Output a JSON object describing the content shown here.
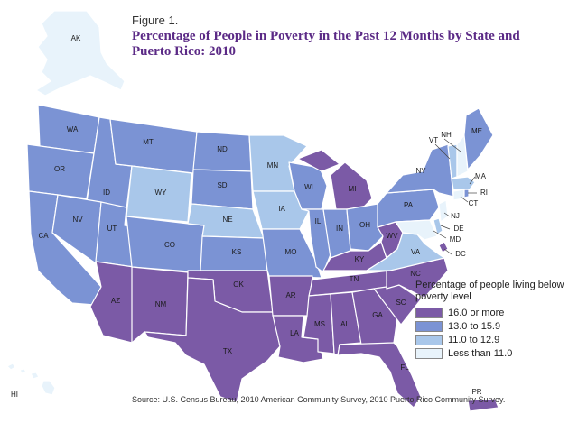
{
  "figure_label": "Figure 1.",
  "title": "Percentage of People in Poverty in the Past 12 Months by State and Puerto Rico: 2010",
  "legend": {
    "title": "Percentage of people living below poverty level",
    "items": [
      {
        "label": "16.0 or more",
        "color": "#7b5aa6"
      },
      {
        "label": "13.0 to 15.9",
        "color": "#7b93d4"
      },
      {
        "label": "11.0 to 12.9",
        "color": "#a9c7ea"
      },
      {
        "label": "Less than 11.0",
        "color": "#e8f3fb"
      }
    ]
  },
  "states": [
    {
      "abbr": "AK",
      "category": "Less than 11.0"
    },
    {
      "abbr": "WA",
      "category": "13.0 to 15.9"
    },
    {
      "abbr": "OR",
      "category": "13.0 to 15.9"
    },
    {
      "abbr": "CA",
      "category": "13.0 to 15.9"
    },
    {
      "abbr": "ID",
      "category": "13.0 to 15.9"
    },
    {
      "abbr": "NV",
      "category": "13.0 to 15.9"
    },
    {
      "abbr": "UT",
      "category": "13.0 to 15.9"
    },
    {
      "abbr": "AZ",
      "category": "16.0 or more"
    },
    {
      "abbr": "MT",
      "category": "13.0 to 15.9"
    },
    {
      "abbr": "WY",
      "category": "11.0 to 12.9"
    },
    {
      "abbr": "CO",
      "category": "13.0 to 15.9"
    },
    {
      "abbr": "NM",
      "category": "16.0 or more"
    },
    {
      "abbr": "ND",
      "category": "13.0 to 15.9"
    },
    {
      "abbr": "SD",
      "category": "13.0 to 15.9"
    },
    {
      "abbr": "NE",
      "category": "11.0 to 12.9"
    },
    {
      "abbr": "KS",
      "category": "13.0 to 15.9"
    },
    {
      "abbr": "OK",
      "category": "16.0 or more"
    },
    {
      "abbr": "TX",
      "category": "16.0 or more"
    },
    {
      "abbr": "MN",
      "category": "11.0 to 12.9"
    },
    {
      "abbr": "IA",
      "category": "11.0 to 12.9"
    },
    {
      "abbr": "MO",
      "category": "13.0 to 15.9"
    },
    {
      "abbr": "AR",
      "category": "16.0 or more"
    },
    {
      "abbr": "LA",
      "category": "16.0 or more"
    },
    {
      "abbr": "WI",
      "category": "13.0 to 15.9"
    },
    {
      "abbr": "IL",
      "category": "13.0 to 15.9"
    },
    {
      "abbr": "MI",
      "category": "16.0 or more"
    },
    {
      "abbr": "IN",
      "category": "13.0 to 15.9"
    },
    {
      "abbr": "OH",
      "category": "13.0 to 15.9"
    },
    {
      "abbr": "KY",
      "category": "16.0 or more"
    },
    {
      "abbr": "TN",
      "category": "16.0 or more"
    },
    {
      "abbr": "MS",
      "category": "16.0 or more"
    },
    {
      "abbr": "AL",
      "category": "16.0 or more"
    },
    {
      "abbr": "GA",
      "category": "16.0 or more"
    },
    {
      "abbr": "FL",
      "category": "16.0 or more"
    },
    {
      "abbr": "SC",
      "category": "16.0 or more"
    },
    {
      "abbr": "NC",
      "category": "16.0 or more"
    },
    {
      "abbr": "WV",
      "category": "16.0 or more"
    },
    {
      "abbr": "VA",
      "category": "11.0 to 12.9"
    },
    {
      "abbr": "PA",
      "category": "13.0 to 15.9"
    },
    {
      "abbr": "NY",
      "category": "13.0 to 15.9"
    },
    {
      "abbr": "ME",
      "category": "13.0 to 15.9"
    },
    {
      "abbr": "VT",
      "category": "11.0 to 12.9"
    },
    {
      "abbr": "NH",
      "category": "Less than 11.0"
    },
    {
      "abbr": "MA",
      "category": "11.0 to 12.9"
    },
    {
      "abbr": "RI",
      "category": "13.0 to 15.9"
    },
    {
      "abbr": "CT",
      "category": "Less than 11.0"
    },
    {
      "abbr": "NJ",
      "category": "Less than 11.0"
    },
    {
      "abbr": "DE",
      "category": "11.0 to 12.9"
    },
    {
      "abbr": "MD",
      "category": "Less than 11.0"
    },
    {
      "abbr": "DC",
      "category": "16.0 or more"
    },
    {
      "abbr": "HI",
      "category": "Less than 11.0"
    },
    {
      "abbr": "PR",
      "category": "16.0 or more"
    }
  ],
  "source": "Source: U.S. Census Bureau, 2010 American Community Survey, 2010 Puerto Rico Community Survey."
}
